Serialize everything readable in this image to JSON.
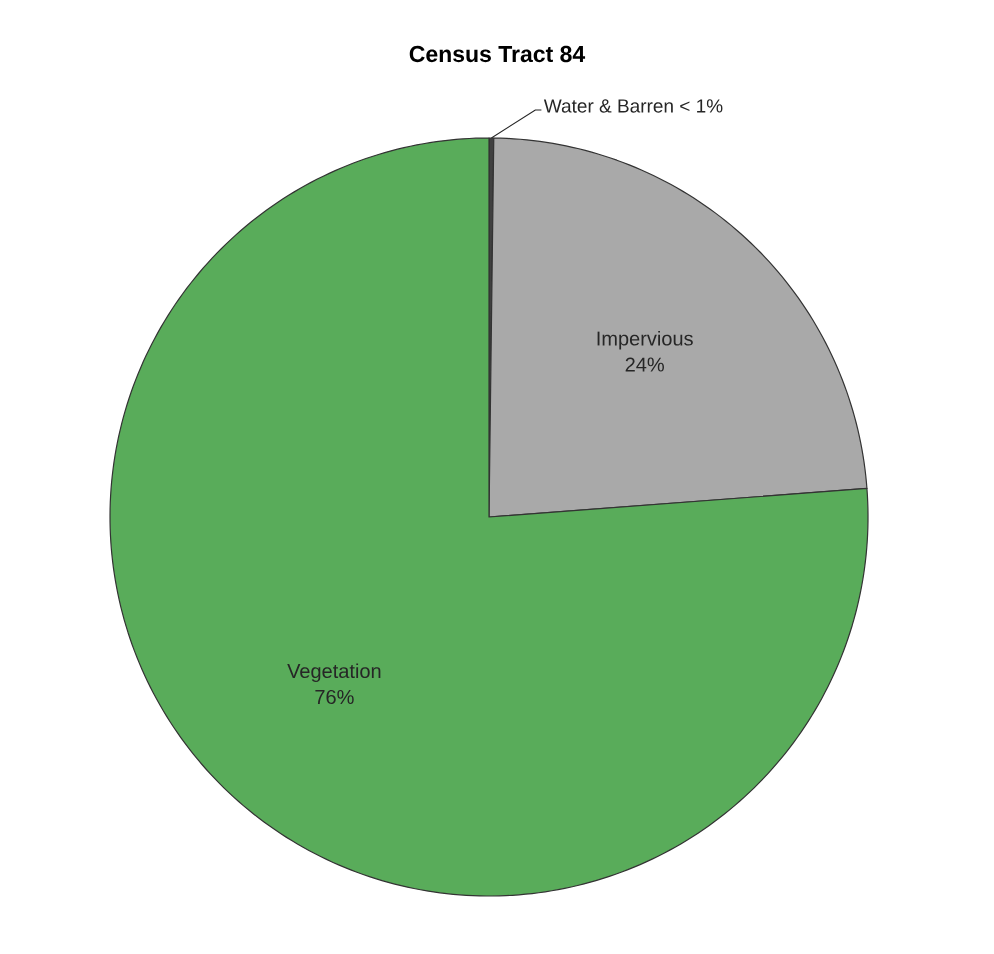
{
  "chart_data": {
    "type": "pie",
    "title": "Census Tract 84",
    "categories": [
      "Water & Barren",
      "Impervious",
      "Vegetation"
    ],
    "values": [
      0.2,
      23.6,
      76.2
    ],
    "value_labels": [
      "< 1%",
      "24%",
      "76%"
    ],
    "colors": [
      "#404040",
      "#a9a9a9",
      "#59ac5a"
    ]
  }
}
